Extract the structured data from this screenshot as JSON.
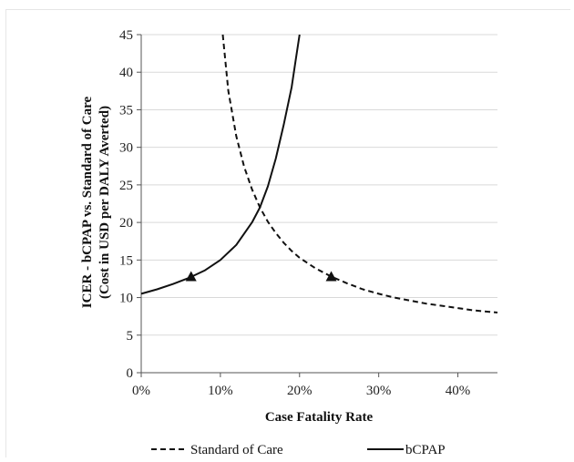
{
  "chart_data": {
    "type": "line",
    "xlabel": "Case Fatality Rate",
    "ylabel_line1": "ICER - bCPAP vs. Standard of Care",
    "ylabel_line2": "(Cost in USD per  DALY Averted)",
    "xlim": [
      0,
      0.45
    ],
    "ylim": [
      0,
      45
    ],
    "x_ticks": [
      0,
      0.1,
      0.2,
      0.3,
      0.4
    ],
    "x_tick_labels": [
      "0%",
      "10%",
      "20%",
      "30%",
      "40%"
    ],
    "y_ticks": [
      0,
      5,
      10,
      15,
      20,
      25,
      30,
      35,
      40,
      45
    ],
    "y_tick_labels": [
      "0",
      "5",
      "10",
      "15",
      "20",
      "25",
      "30",
      "35",
      "40",
      "45"
    ],
    "grid": "horizontal",
    "legend_position": "bottom",
    "series": [
      {
        "name": "Standard of Care",
        "style": "dashed",
        "color": "#111111",
        "x": [
          0.103,
          0.11,
          0.12,
          0.13,
          0.14,
          0.15,
          0.16,
          0.17,
          0.18,
          0.19,
          0.2,
          0.22,
          0.24,
          0.26,
          0.28,
          0.3,
          0.32,
          0.34,
          0.36,
          0.38,
          0.4,
          0.42,
          0.44,
          0.45
        ],
        "y": [
          45,
          37.5,
          31.5,
          27.4,
          24.4,
          22.0,
          20.1,
          18.6,
          17.3,
          16.2,
          15.3,
          13.9,
          12.8,
          11.9,
          11.1,
          10.5,
          10.0,
          9.6,
          9.2,
          8.9,
          8.6,
          8.3,
          8.1,
          8.0
        ],
        "markers": [
          {
            "x": 0.24,
            "y": 12.8
          }
        ]
      },
      {
        "name": "bCPAP",
        "style": "solid",
        "color": "#111111",
        "x": [
          0,
          0.02,
          0.04,
          0.06,
          0.08,
          0.1,
          0.12,
          0.14,
          0.15,
          0.16,
          0.17,
          0.18,
          0.19,
          0.195,
          0.2
        ],
        "y": [
          10.5,
          11.1,
          11.8,
          12.6,
          13.6,
          15.0,
          17.0,
          20.0,
          22.0,
          24.8,
          28.5,
          33.0,
          38.0,
          41.5,
          45.0
        ],
        "markers": [
          {
            "x": 0.063,
            "y": 12.8
          }
        ]
      }
    ]
  }
}
